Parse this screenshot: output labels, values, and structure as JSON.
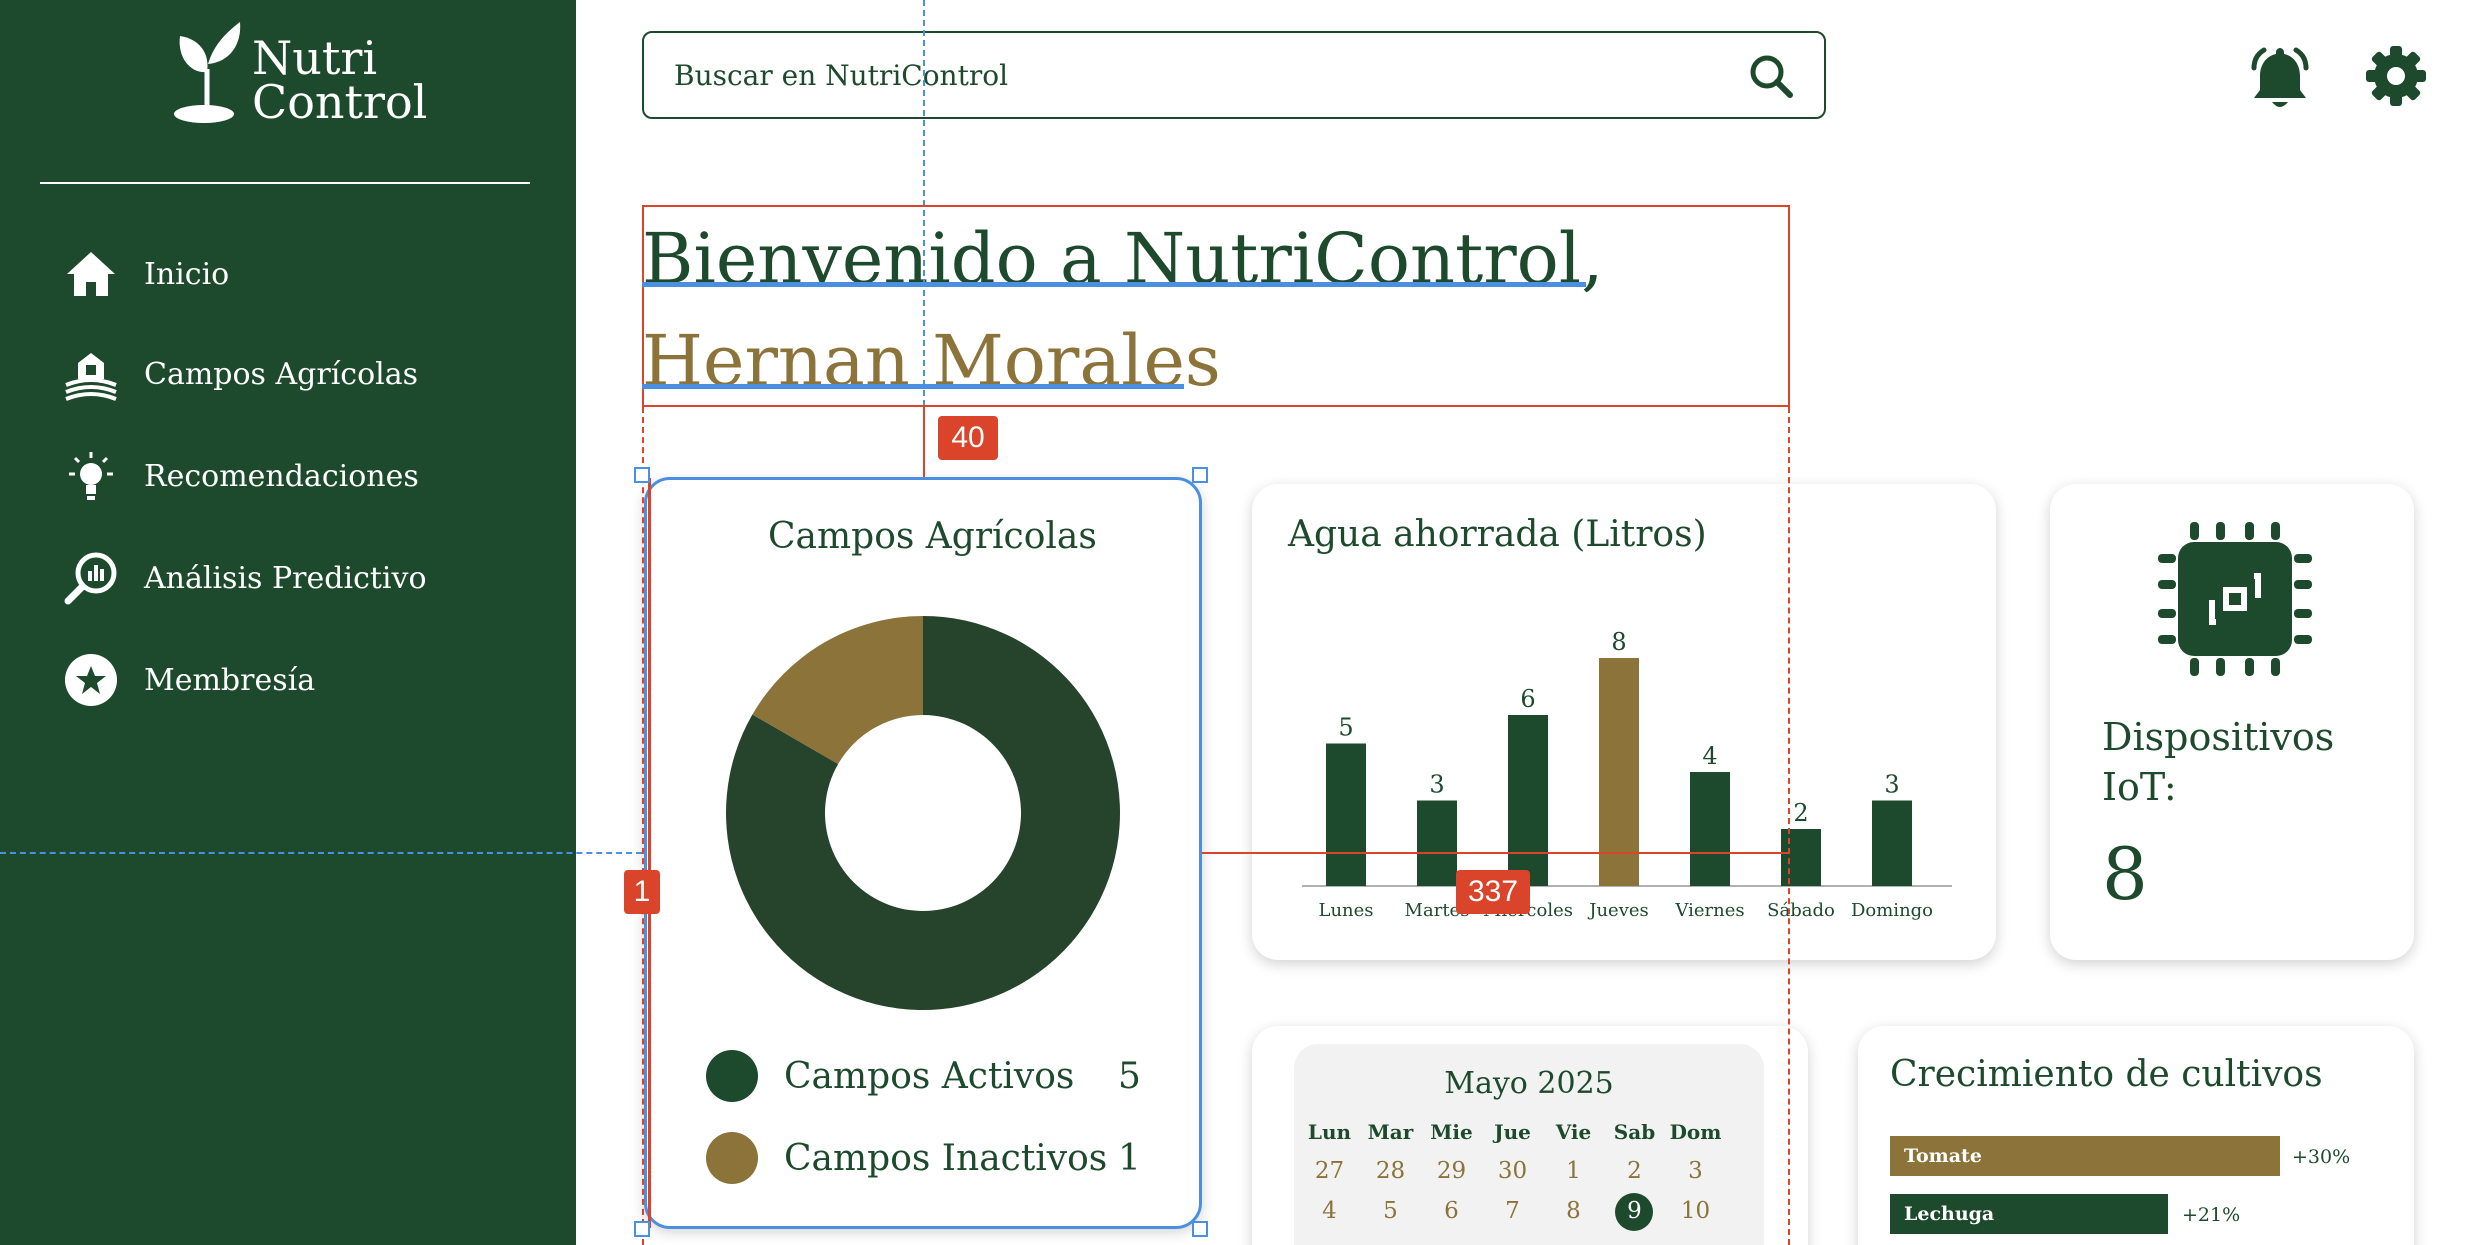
{
  "sidebar": {
    "logo": {
      "line1": "Nutri",
      "line2": "Control"
    },
    "items": [
      {
        "label": "Inicio",
        "icon": "home-icon"
      },
      {
        "label": "Campos Agrícolas",
        "icon": "farm-icon"
      },
      {
        "label": "Recomendaciones",
        "icon": "lightbulb-icon"
      },
      {
        "label": "Análisis Predictivo",
        "icon": "magnifier-chart-icon"
      },
      {
        "label": "Membresía",
        "icon": "star-badge-icon"
      }
    ]
  },
  "header": {
    "search_placeholder": "Buscar en NutriControl"
  },
  "welcome": {
    "line1": "Bienvenido a NutriControl,",
    "name": "Hernan Morales"
  },
  "colors": {
    "primary": "#1d4a2c",
    "dark_green": "#26432c",
    "accent": "#8b7339",
    "overlay_red": "#d9442a",
    "overlay_blue": "#4a8fe0"
  },
  "fields_card": {
    "title": "Campos Agrícolas",
    "legend": [
      {
        "label": "Campos Activos",
        "value": "5"
      },
      {
        "label": "Campos Inactivos",
        "value": "1"
      }
    ]
  },
  "water_card": {
    "title": "Agua ahorrada (Litros)"
  },
  "iot_card": {
    "label": "Dispositivos IoT:",
    "value": "8"
  },
  "calendar": {
    "month": "Mayo 2025",
    "weekdays": [
      "Lun",
      "Mar",
      "Mie",
      "Jue",
      "Vie",
      "Sab",
      "Dom"
    ],
    "week1": [
      "27",
      "28",
      "29",
      "30",
      "1",
      "2",
      "3"
    ],
    "week2": [
      "4",
      "5",
      "6",
      "7",
      "8",
      "9",
      "10"
    ],
    "today": "9"
  },
  "growth_card": {
    "title": "Crecimiento de cultivos",
    "crops": [
      {
        "name": "Tomate",
        "change": "+30%"
      },
      {
        "name": "Lechuga",
        "change": "+21%"
      }
    ]
  },
  "design_overlay": {
    "spacing_badge": "40",
    "width_badge": "337",
    "index_badge": "1"
  },
  "chart_data": [
    {
      "type": "pie",
      "title": "Campos Agrícolas",
      "categories": [
        "Campos Activos",
        "Campos Inactivos"
      ],
      "values": [
        5,
        1
      ],
      "colors": [
        "#26432c",
        "#8b7339"
      ]
    },
    {
      "type": "bar",
      "title": "Agua ahorrada (Litros)",
      "categories": [
        "Lunes",
        "Martes",
        "Miércoles",
        "Jueves",
        "Viernes",
        "Sábado",
        "Domingo"
      ],
      "values": [
        5,
        3,
        6,
        8,
        4,
        2,
        3
      ],
      "highlight_index": 3,
      "colors": {
        "default": "#1d4a2c",
        "highlight": "#8b7339"
      }
    }
  ]
}
